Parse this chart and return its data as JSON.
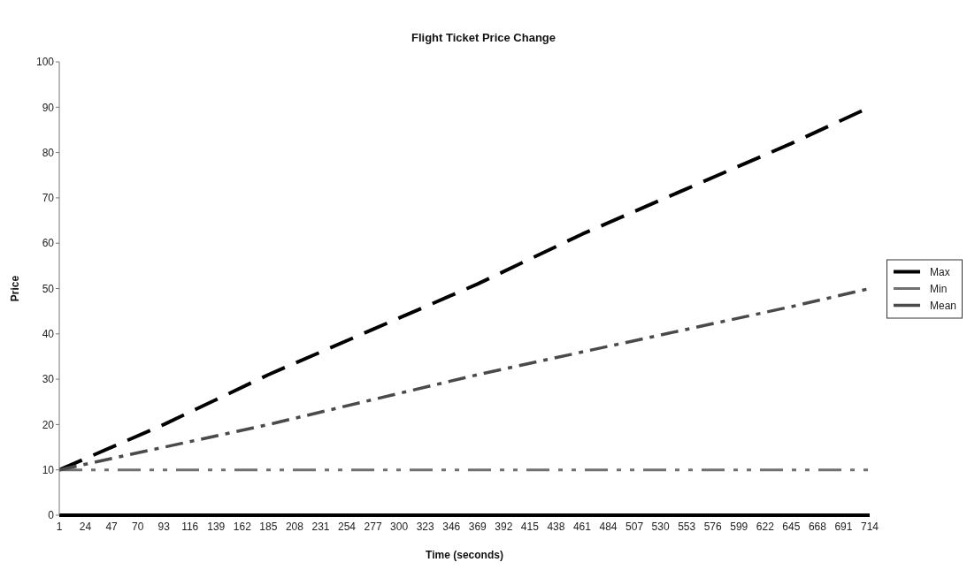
{
  "chart_data": {
    "type": "line",
    "title": "Flight Ticket Price Change",
    "xlabel": "Time (seconds)",
    "ylabel": "Price",
    "x": [
      1,
      93,
      185,
      277,
      369,
      461,
      553,
      645,
      714
    ],
    "series": [
      {
        "name": "Max",
        "color": "#000000",
        "line_style": "dashed",
        "values": [
          10,
          20,
          31,
          41,
          51,
          62,
          72,
          82,
          90
        ]
      },
      {
        "name": "Min",
        "color": "#707070",
        "line_style": "dashdotdot",
        "values": [
          10,
          10,
          10,
          10,
          10,
          10,
          10,
          10,
          10
        ]
      },
      {
        "name": "Mean",
        "color": "#4a4a4a",
        "line_style": "dashdot",
        "values": [
          10,
          15,
          20,
          25.5,
          31,
          36,
          41,
          46,
          50
        ]
      }
    ],
    "xlim": [
      1,
      714
    ],
    "xticks": [
      1,
      24,
      47,
      70,
      93,
      116,
      139,
      162,
      185,
      208,
      231,
      254,
      277,
      300,
      323,
      346,
      369,
      392,
      415,
      438,
      461,
      484,
      507,
      530,
      553,
      576,
      599,
      622,
      645,
      668,
      691,
      714
    ],
    "ylim": [
      0,
      100
    ],
    "yticks": [
      0,
      10,
      20,
      30,
      40,
      50,
      60,
      70,
      80,
      90,
      100
    ],
    "legend": "right"
  }
}
